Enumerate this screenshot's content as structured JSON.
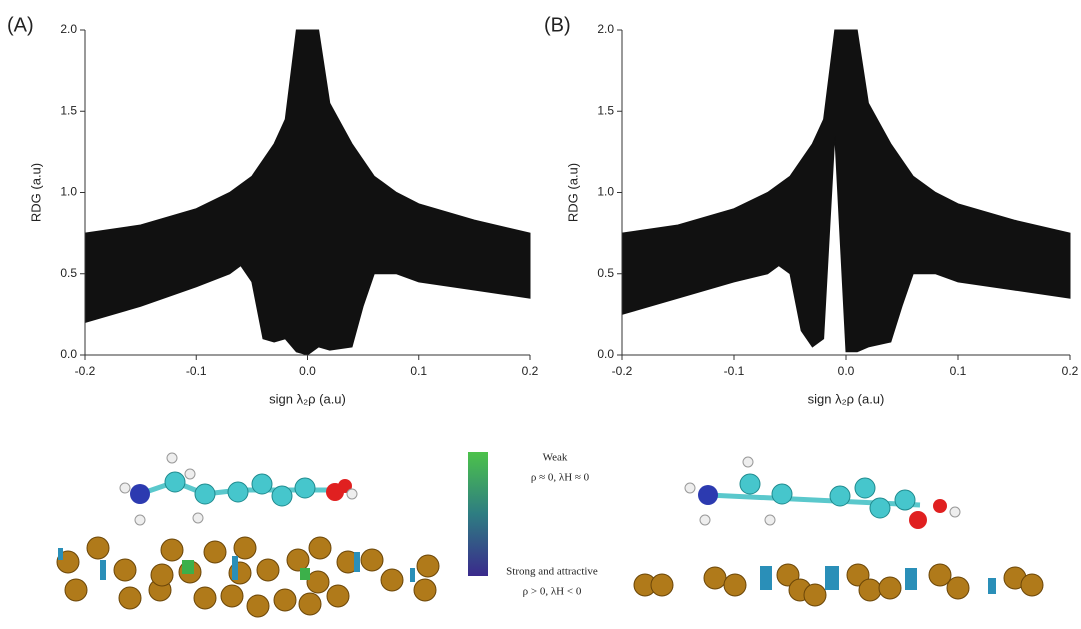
{
  "chart_data": [
    {
      "type": "range_area",
      "panel_label": "(A)",
      "x_label": "sign λ₂ρ (a.u)",
      "y_label": "RDG (a.u)",
      "color": "#111111",
      "x": [
        -0.2,
        -0.15,
        -0.1,
        -0.07,
        -0.06,
        -0.05,
        -0.04,
        -0.03,
        -0.02,
        -0.01,
        0,
        0.01,
        0.02,
        0.04,
        0.05,
        0.06,
        0.08,
        0.1,
        0.15,
        0.2
      ],
      "upper": [
        0.75,
        0.8,
        0.9,
        1.0,
        1.05,
        1.1,
        1.2,
        1.3,
        1.45,
        2.0,
        2.0,
        2.0,
        1.55,
        1.3,
        1.2,
        1.1,
        1.0,
        0.93,
        0.83,
        0.75
      ],
      "lower": [
        0.2,
        0.3,
        0.42,
        0.5,
        0.55,
        0.45,
        0.1,
        0.08,
        0.1,
        0.02,
        0.0,
        0.05,
        0.03,
        0.05,
        0.3,
        0.5,
        0.5,
        0.45,
        0.4,
        0.35
      ],
      "xlim": [
        -0.2,
        0.2
      ],
      "ylim": [
        0,
        2
      ],
      "xticks": [
        -0.2,
        -0.1,
        {
          "value": 0,
          "label": "0.0"
        },
        0.1,
        0.2
      ],
      "yticks": [
        {
          "value": 0,
          "label": "0.0"
        },
        0.5,
        {
          "value": 1,
          "label": "1.0"
        },
        1.5,
        {
          "value": 2,
          "label": "2.0"
        }
      ]
    },
    {
      "type": "range_area",
      "panel_label": "(B)",
      "x_label": "sign λ₂ρ (a.u)",
      "y_label": "RDG (a.u)",
      "color": "#111111",
      "x": [
        -0.2,
        -0.15,
        -0.1,
        -0.07,
        -0.06,
        -0.05,
        -0.04,
        -0.03,
        -0.02,
        -0.01,
        0,
        0.01,
        0.02,
        0.04,
        0.05,
        0.06,
        0.08,
        0.1,
        0.15,
        0.2
      ],
      "upper": [
        0.75,
        0.8,
        0.9,
        1.0,
        1.05,
        1.1,
        1.2,
        1.3,
        1.45,
        2.0,
        2.0,
        2.0,
        1.55,
        1.3,
        1.2,
        1.1,
        1.0,
        0.93,
        0.83,
        0.75
      ],
      "lower": [
        0.25,
        0.35,
        0.45,
        0.5,
        0.55,
        0.5,
        0.15,
        0.05,
        0.1,
        1.35,
        0.02,
        0.02,
        0.05,
        0.08,
        0.3,
        0.5,
        0.5,
        0.45,
        0.4,
        0.35
      ],
      "xlim": [
        -0.2,
        0.2
      ],
      "ylim": [
        0,
        2
      ],
      "xticks": [
        -0.2,
        -0.1,
        {
          "value": 0,
          "label": "0.0"
        },
        0.1,
        0.2
      ],
      "yticks": [
        {
          "value": 0,
          "label": "0.0"
        },
        0.5,
        {
          "value": 1,
          "label": "1.0"
        },
        1.5,
        {
          "value": 2,
          "label": "2.0"
        }
      ]
    }
  ],
  "color_scale": {
    "top_label": "Weak",
    "top_condition": "ρ ≈ 0, λH ≈ 0",
    "bottom_label": "Strong and attractive",
    "bottom_condition": "ρ > 0, λH < 0"
  }
}
